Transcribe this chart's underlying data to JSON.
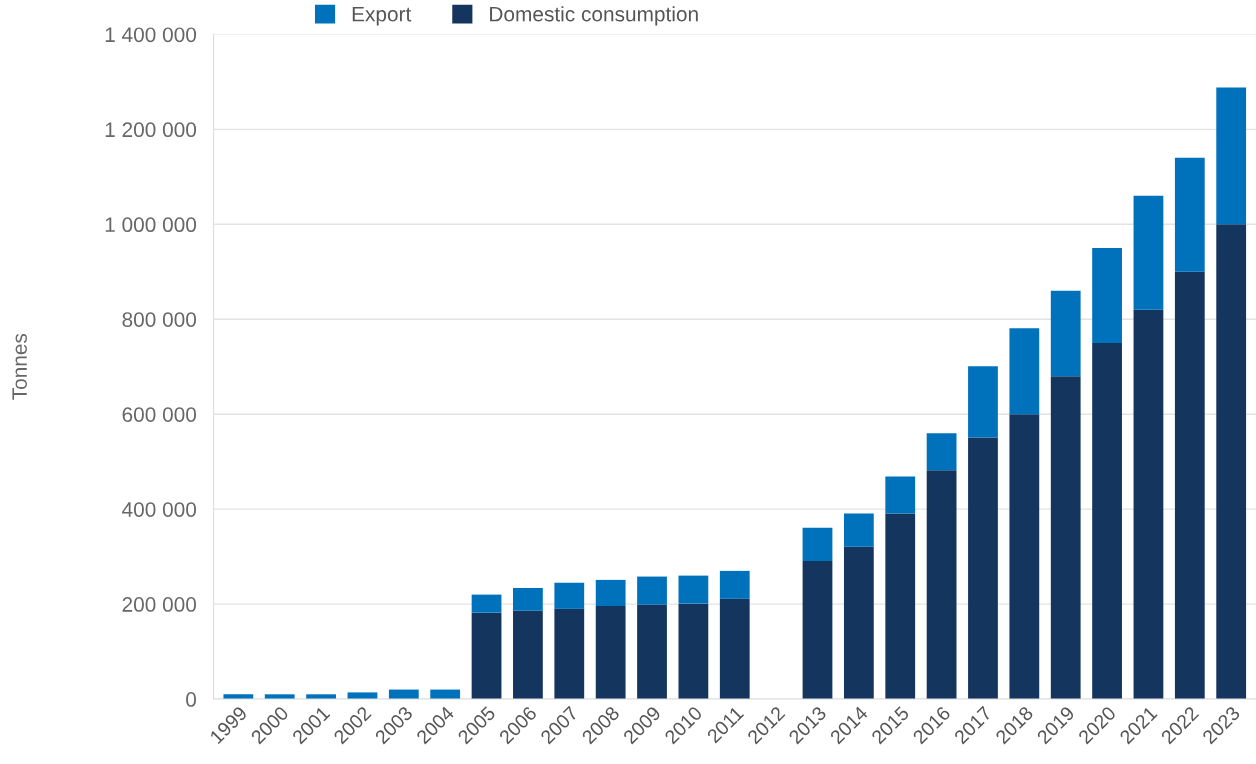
{
  "chart_data": {
    "type": "bar",
    "stacked": true,
    "ylabel": "Tonnes",
    "categories": [
      "1999",
      "2000",
      "2001",
      "2002",
      "2003",
      "2004",
      "2005",
      "2006",
      "2007",
      "2008",
      "2009",
      "2010",
      "2011",
      "2012",
      "2013",
      "2014",
      "2015",
      "2016",
      "2017",
      "2018",
      "2019",
      "2020",
      "2021",
      "2022",
      "2023"
    ],
    "series": [
      {
        "name": "Domestic consumption",
        "color": "#14365e",
        "values": [
          0,
          0,
          0,
          0,
          0,
          0,
          182000,
          186000,
          190000,
          196000,
          199000,
          201000,
          211000,
          null,
          291000,
          321000,
          391000,
          482000,
          551000,
          600000,
          680000,
          750000,
          820000,
          900000,
          1000000
        ]
      },
      {
        "name": "Export",
        "color": "#0072bc",
        "values": [
          10000,
          10000,
          10000,
          14000,
          20000,
          20000,
          38000,
          48000,
          55000,
          55000,
          59000,
          59000,
          59000,
          null,
          70000,
          70000,
          78000,
          78000,
          150000,
          181000,
          180000,
          200000,
          240000,
          240000,
          288000
        ]
      }
    ],
    "ylim": [
      0,
      1400000
    ],
    "yticks": [
      0,
      {
        "value": 200000,
        "label": "200 000"
      },
      {
        "value": 400000,
        "label": "400 000"
      },
      {
        "value": 600000,
        "label": "600 000"
      },
      {
        "value": 800000,
        "label": "800 000"
      },
      {
        "value": 1000000,
        "label": "1 000 000"
      },
      {
        "value": 1200000,
        "label": "1 200 000"
      },
      {
        "value": 1400000,
        "label": "1 400 000"
      }
    ],
    "grid": "y",
    "legend": "top left"
  }
}
